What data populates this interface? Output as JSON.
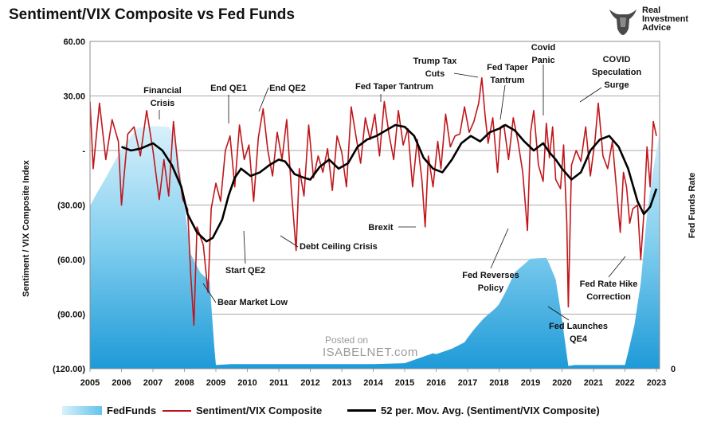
{
  "title": "Sentiment/VIX Composite vs Fed Funds",
  "brand": {
    "line1": "Real",
    "line2": "Investment",
    "line3": "Advice",
    "icon": "bull-head-logo"
  },
  "watermark": {
    "line1": "Posted on",
    "line2": "ISABELNET.com"
  },
  "colors": {
    "fedfunds_light": "#d8f1fb",
    "fedfunds_dark": "#1ea0dc",
    "sentiment": "#c0161b",
    "movavg": "#000000",
    "grid": "#8c8c8c"
  },
  "chart_data": {
    "type": "line",
    "title": "Sentiment/VIX Composite vs Fed Funds",
    "ylabel": "Sentiment / VIX Composite Index",
    "y2label": "Fed Funds Rate",
    "ylim": [
      -120,
      60
    ],
    "y_ticks": [
      "60.00",
      "30.00",
      "-",
      "(30.00)",
      "(60.00)",
      "(90.00)",
      "(120.00)"
    ],
    "y2_ticks": [
      "0"
    ],
    "xlim": [
      2005,
      2023.1
    ],
    "x_ticks": [
      "2005",
      "2006",
      "2007",
      "2008",
      "2009",
      "2010",
      "2011",
      "2012",
      "2013",
      "2014",
      "2015",
      "2016",
      "2017",
      "2018",
      "2019",
      "2020",
      "2021",
      "2022",
      "2023"
    ],
    "grid": true,
    "legend_position": "bottom",
    "series": [
      {
        "name": "FedFunds",
        "style": "area",
        "x": [
          2005.0,
          2005.2,
          2005.5,
          2005.8,
          2006.0,
          2006.5,
          2007.0,
          2007.5,
          2007.7,
          2007.8,
          2008.0,
          2008.2,
          2008.5,
          2008.8,
          2008.95,
          2009.0,
          2009.5,
          2010.0,
          2011.0,
          2012.0,
          2013.0,
          2014.0,
          2015.0,
          2015.9,
          2016.0,
          2016.5,
          2016.9,
          2017.0,
          2017.2,
          2017.5,
          2017.9,
          2018.0,
          2018.2,
          2018.5,
          2018.9,
          2019.0,
          2019.5,
          2019.6,
          2019.8,
          2020.0,
          2020.2,
          2020.4,
          2021.0,
          2022.0,
          2022.1,
          2022.3,
          2022.5,
          2022.7,
          2022.9,
          2023.1
        ],
        "y": [
          -30.5,
          -24.0,
          -15.0,
          -5.5,
          0.5,
          12.5,
          13.5,
          13.0,
          8.0,
          -2.0,
          -30.5,
          -57.0,
          -67.0,
          -72.0,
          -108.0,
          -118.0,
          -117.5,
          -117.5,
          -117.5,
          -117.5,
          -117.5,
          -117.5,
          -117.0,
          -111.5,
          -112.0,
          -109.0,
          -105.5,
          -103.0,
          -98.5,
          -92.5,
          -86.5,
          -84.5,
          -78.0,
          -67.0,
          -61.0,
          -59.5,
          -59.0,
          -62.5,
          -71.0,
          -93.0,
          -118.5,
          -118.0,
          -118.0,
          -118.0,
          -111.0,
          -96.0,
          -73.0,
          -35.0,
          -10.0,
          9.5
        ]
      },
      {
        "name": "Sentiment/VIX Composite",
        "style": "line",
        "x": [
          2005.0,
          2005.1,
          2005.3,
          2005.5,
          2005.7,
          2005.9,
          2006.0,
          2006.2,
          2006.4,
          2006.6,
          2006.8,
          2007.0,
          2007.2,
          2007.35,
          2007.5,
          2007.65,
          2007.8,
          2007.95,
          2008.1,
          2008.2,
          2008.3,
          2008.4,
          2008.6,
          2008.75,
          2008.85,
          2009.0,
          2009.15,
          2009.3,
          2009.45,
          2009.6,
          2009.75,
          2009.9,
          2010.05,
          2010.2,
          2010.35,
          2010.5,
          2010.65,
          2010.8,
          2010.95,
          2011.1,
          2011.25,
          2011.4,
          2011.55,
          2011.65,
          2011.8,
          2011.95,
          2012.1,
          2012.25,
          2012.4,
          2012.55,
          2012.7,
          2012.85,
          2013.0,
          2013.15,
          2013.3,
          2013.45,
          2013.6,
          2013.75,
          2013.9,
          2014.05,
          2014.2,
          2014.35,
          2014.5,
          2014.65,
          2014.8,
          2014.95,
          2015.1,
          2015.25,
          2015.4,
          2015.55,
          2015.65,
          2015.75,
          2015.9,
          2016.05,
          2016.15,
          2016.3,
          2016.45,
          2016.6,
          2016.75,
          2016.9,
          2017.05,
          2017.2,
          2017.35,
          2017.45,
          2017.55,
          2017.65,
          2017.8,
          2017.95,
          2018.05,
          2018.15,
          2018.3,
          2018.45,
          2018.6,
          2018.75,
          2018.9,
          2019.0,
          2019.1,
          2019.25,
          2019.4,
          2019.5,
          2019.6,
          2019.7,
          2019.8,
          2019.95,
          2020.05,
          2020.15,
          2020.2,
          2020.3,
          2020.45,
          2020.6,
          2020.75,
          2020.9,
          2021.05,
          2021.15,
          2021.3,
          2021.45,
          2021.6,
          2021.75,
          2021.85,
          2021.95,
          2022.05,
          2022.15,
          2022.25,
          2022.4,
          2022.5,
          2022.6,
          2022.7,
          2022.8,
          2022.9,
          2023.0
        ],
        "y": [
          27,
          -10,
          26,
          -5,
          17,
          5,
          -30,
          9,
          13,
          -3,
          22,
          0,
          -27,
          -5,
          -25,
          16,
          -10,
          -27,
          -32,
          -68,
          -96,
          -42,
          -52,
          -78,
          -32,
          -18,
          -28,
          0,
          8,
          -20,
          14,
          -5,
          3,
          -28,
          7,
          23,
          0,
          -14,
          10,
          -5,
          17,
          -22,
          -55,
          -10,
          -25,
          14,
          -15,
          -3,
          -12,
          1,
          -22,
          8,
          -1,
          -20,
          24,
          8,
          -7,
          18,
          6,
          20,
          -3,
          27,
          9,
          -5,
          22,
          3,
          12,
          -20,
          6,
          -17,
          -42,
          -3,
          -20,
          5,
          -10,
          20,
          2,
          8,
          9,
          24,
          10,
          16,
          26,
          40,
          20,
          4,
          18,
          -12,
          13,
          14,
          -5,
          18,
          5,
          -12,
          -44,
          10,
          22,
          -8,
          -17,
          15,
          -4,
          13,
          -16,
          -21,
          3,
          -40,
          -86,
          -8,
          0,
          -6,
          13,
          -14,
          6,
          26,
          -3,
          -10,
          5,
          -25,
          -45,
          -12,
          -20,
          -40,
          -32,
          -30,
          -60,
          -35,
          2,
          -20,
          16,
          8
        ]
      },
      {
        "name": "52 per. Mov. Avg. (Sentiment/VIX Composite)",
        "style": "line",
        "x": [
          2006.0,
          2006.3,
          2006.6,
          2007.0,
          2007.3,
          2007.6,
          2007.9,
          2008.1,
          2008.4,
          2008.7,
          2008.9,
          2009.2,
          2009.4,
          2009.6,
          2009.8,
          2010.1,
          2010.4,
          2010.7,
          2011.0,
          2011.2,
          2011.5,
          2011.8,
          2012.0,
          2012.3,
          2012.6,
          2012.9,
          2013.2,
          2013.5,
          2013.8,
          2014.1,
          2014.4,
          2014.7,
          2015.0,
          2015.3,
          2015.6,
          2015.9,
          2016.2,
          2016.5,
          2016.8,
          2017.1,
          2017.4,
          2017.7,
          2018.0,
          2018.2,
          2018.5,
          2018.8,
          2019.1,
          2019.4,
          2019.6,
          2019.8,
          2020.0,
          2020.3,
          2020.6,
          2020.9,
          2021.2,
          2021.5,
          2021.8,
          2022.1,
          2022.4,
          2022.6,
          2022.8,
          2023.0
        ],
        "y": [
          2,
          0,
          1,
          4,
          0,
          -8,
          -20,
          -35,
          -45,
          -50,
          -48,
          -38,
          -25,
          -15,
          -10,
          -14,
          -12,
          -8,
          -5,
          -6,
          -13,
          -15,
          -16,
          -9,
          -5,
          -10,
          -7,
          2,
          6,
          8,
          11,
          14,
          13,
          8,
          -4,
          -10,
          -12,
          -5,
          4,
          8,
          5,
          10,
          12,
          14,
          11,
          5,
          0,
          4,
          -1,
          -5,
          -10,
          -16,
          -12,
          0,
          6,
          8,
          2,
          -10,
          -28,
          -35,
          -31,
          -21
        ]
      }
    ],
    "annotations": [
      {
        "lines": [
          "Financial",
          "Crisis"
        ]
      },
      {
        "lines": [
          "End QE1"
        ]
      },
      {
        "lines": [
          "End QE2"
        ]
      },
      {
        "lines": [
          "Fed Taper Tantrum"
        ]
      },
      {
        "lines": [
          "Trump Tax",
          "Cuts"
        ]
      },
      {
        "lines": [
          "Fed Taper",
          "Tantrum"
        ]
      },
      {
        "lines": [
          "Covid",
          "Panic"
        ]
      },
      {
        "lines": [
          "COVID",
          "Speculation",
          "Surge"
        ]
      },
      {
        "lines": [
          "Brexit"
        ]
      },
      {
        "lines": [
          "Debt Ceiling Crisis"
        ]
      },
      {
        "lines": [
          "Start QE2"
        ]
      },
      {
        "lines": [
          "Bear Market Low"
        ]
      },
      {
        "lines": [
          "Fed Reverses",
          "Policy"
        ]
      },
      {
        "lines": [
          "Fed Rate Hike",
          "Correction"
        ]
      },
      {
        "lines": [
          "Fed Launches",
          "QE4"
        ]
      }
    ]
  }
}
